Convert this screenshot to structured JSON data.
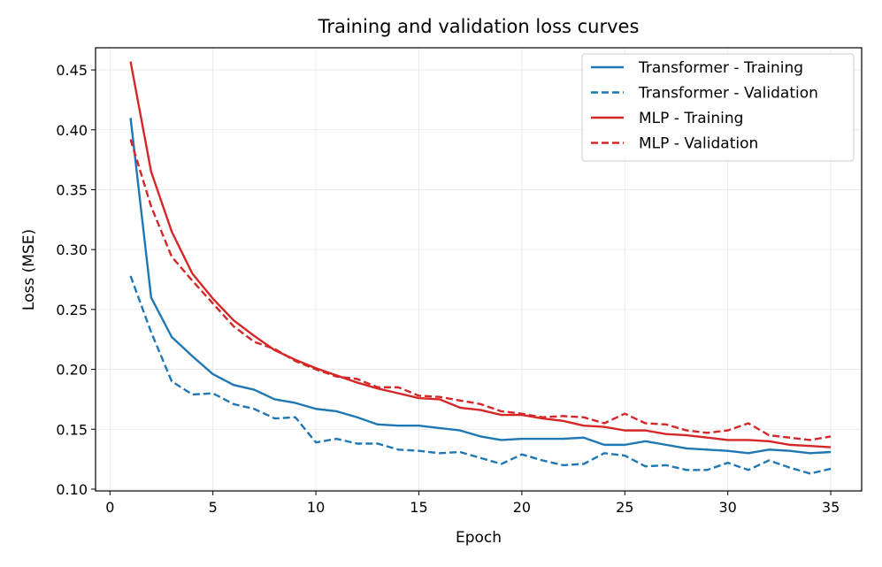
{
  "chart_data": {
    "type": "line",
    "title": "Training and validation loss curves",
    "xlabel": "Epoch",
    "ylabel": "Loss (MSE)",
    "xlim": [
      -0.7,
      36.5
    ],
    "ylim": [
      0.0985,
      0.4685
    ],
    "xticks": [
      0,
      5,
      10,
      15,
      20,
      25,
      30,
      35
    ],
    "yticks": [
      0.1,
      0.15,
      0.2,
      0.25,
      0.3,
      0.35,
      0.4,
      0.45
    ],
    "ytick_labels": [
      "0.10",
      "0.15",
      "0.20",
      "0.25",
      "0.30",
      "0.35",
      "0.40",
      "0.45"
    ],
    "grid": true,
    "legend_position": "top-right",
    "x": [
      1,
      2,
      3,
      4,
      5,
      6,
      7,
      8,
      9,
      10,
      11,
      12,
      13,
      14,
      15,
      16,
      17,
      18,
      19,
      20,
      21,
      22,
      23,
      24,
      25,
      26,
      27,
      28,
      29,
      30,
      31,
      32,
      33,
      34,
      35
    ],
    "series": [
      {
        "name": "Transformer - Training",
        "color": "#1f77b4",
        "dashed": false,
        "values": [
          0.41,
          0.26,
          0.227,
          0.211,
          0.196,
          0.187,
          0.183,
          0.175,
          0.172,
          0.167,
          0.165,
          0.16,
          0.154,
          0.153,
          0.153,
          0.151,
          0.149,
          0.144,
          0.141,
          0.142,
          0.142,
          0.142,
          0.143,
          0.137,
          0.137,
          0.14,
          0.137,
          0.134,
          0.133,
          0.132,
          0.13,
          0.133,
          0.132,
          0.13,
          0.131
        ]
      },
      {
        "name": "Transformer - Validation",
        "color": "#1f77b4",
        "dashed": true,
        "values": [
          0.278,
          0.231,
          0.19,
          0.179,
          0.18,
          0.171,
          0.167,
          0.159,
          0.16,
          0.139,
          0.142,
          0.138,
          0.138,
          0.133,
          0.132,
          0.13,
          0.131,
          0.126,
          0.121,
          0.129,
          0.124,
          0.12,
          0.121,
          0.13,
          0.128,
          0.119,
          0.12,
          0.116,
          0.116,
          0.122,
          0.116,
          0.124,
          0.118,
          0.113,
          0.117
        ]
      },
      {
        "name": "MLP - Training",
        "color": "#d62728",
        "dashed": false,
        "values": [
          0.457,
          0.365,
          0.315,
          0.28,
          0.259,
          0.241,
          0.228,
          0.216,
          0.208,
          0.201,
          0.195,
          0.189,
          0.184,
          0.18,
          0.176,
          0.175,
          0.168,
          0.166,
          0.162,
          0.162,
          0.159,
          0.157,
          0.153,
          0.152,
          0.149,
          0.149,
          0.146,
          0.145,
          0.143,
          0.141,
          0.141,
          0.14,
          0.137,
          0.136,
          0.135
        ]
      },
      {
        "name": "MLP - Validation",
        "color": "#d62728",
        "dashed": true,
        "values": [
          0.392,
          0.336,
          0.294,
          0.274,
          0.255,
          0.236,
          0.223,
          0.217,
          0.207,
          0.2,
          0.194,
          0.192,
          0.185,
          0.185,
          0.178,
          0.177,
          0.174,
          0.171,
          0.165,
          0.163,
          0.16,
          0.161,
          0.16,
          0.155,
          0.163,
          0.155,
          0.154,
          0.149,
          0.147,
          0.149,
          0.155,
          0.145,
          0.143,
          0.141,
          0.144
        ]
      }
    ]
  }
}
